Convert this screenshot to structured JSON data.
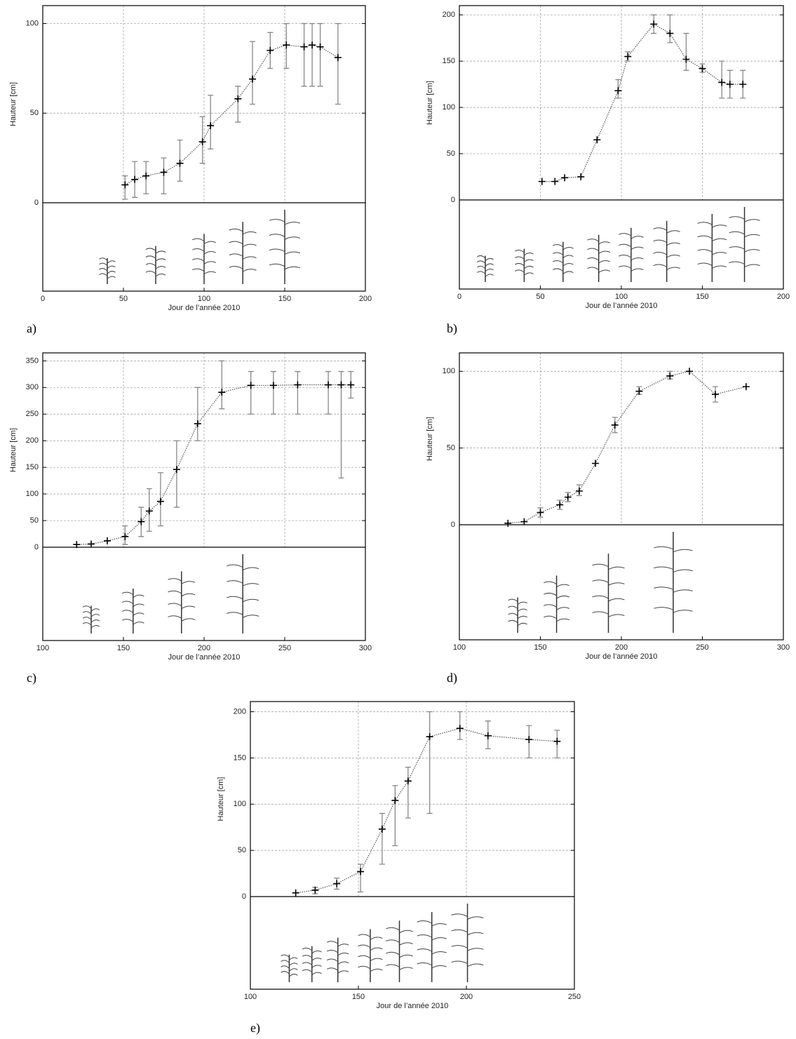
{
  "chart_data": [
    {
      "type": "line",
      "panel_label": "a)",
      "ylabel": "Hauteur  [cm]",
      "xlabel": "Jour de l’année 2010",
      "x": [
        51,
        57,
        64,
        75,
        85,
        99,
        104,
        121,
        130,
        141,
        151,
        162,
        167,
        172,
        183
      ],
      "values": [
        10,
        13,
        15,
        17,
        22,
        34,
        43,
        58,
        69,
        85,
        88,
        87,
        88,
        87,
        81
      ],
      "lower": [
        2,
        3,
        5,
        5,
        12,
        22,
        30,
        45,
        55,
        75,
        75,
        65,
        65,
        65,
        55
      ],
      "upper": [
        15,
        23,
        23,
        25,
        35,
        48,
        60,
        65,
        90,
        95,
        100,
        100,
        100,
        100,
        100
      ],
      "xlim": [
        0,
        200
      ],
      "xticks": [
        0,
        50,
        100,
        150,
        200
      ],
      "ylim": [
        0,
        110
      ],
      "yticks": [
        0,
        50,
        100
      ],
      "grid": true
    },
    {
      "type": "line",
      "panel_label": "b)",
      "ylabel": "Hauteur  [cm]",
      "xlabel": "Jour de l’année 2010",
      "x": [
        51,
        59,
        65,
        75,
        85,
        98,
        104,
        120,
        130,
        140,
        150,
        162,
        167,
        175
      ],
      "values": [
        20,
        20,
        24,
        25,
        65,
        118,
        155,
        190,
        180,
        152,
        142,
        127,
        125,
        125
      ],
      "lower": [
        null,
        null,
        null,
        null,
        null,
        110,
        150,
        180,
        170,
        140,
        138,
        110,
        110,
        110
      ],
      "upper": [
        null,
        null,
        null,
        null,
        null,
        130,
        160,
        200,
        200,
        180,
        147,
        150,
        140,
        140
      ],
      "xlim": [
        0,
        200
      ],
      "xticks": [
        0,
        50,
        100,
        150,
        200
      ],
      "ylim": [
        0,
        210
      ],
      "yticks": [
        0,
        50,
        100,
        150,
        200
      ],
      "grid": true
    },
    {
      "type": "line",
      "panel_label": "c)",
      "ylabel": "Hauteur  [cm]",
      "xlabel": "Jour de l’année 2010",
      "x": [
        121,
        130,
        140,
        151,
        161,
        166,
        173,
        183,
        196,
        211,
        229,
        243,
        258,
        277,
        285,
        291
      ],
      "values": [
        5,
        6,
        12,
        20,
        48,
        68,
        86,
        146,
        232,
        291,
        304,
        304,
        305,
        305,
        305,
        305
      ],
      "lower": [
        null,
        null,
        null,
        5,
        20,
        30,
        40,
        75,
        200,
        260,
        250,
        250,
        250,
        250,
        130,
        280
      ],
      "upper": [
        null,
        null,
        null,
        40,
        75,
        110,
        140,
        200,
        300,
        350,
        330,
        330,
        330,
        330,
        330,
        330
      ],
      "xlim": [
        100,
        300
      ],
      "xticks": [
        100,
        150,
        200,
        250,
        300
      ],
      "ylim": [
        0,
        365
      ],
      "yticks": [
        0,
        50,
        100,
        150,
        200,
        250,
        300,
        350
      ],
      "grid": true
    },
    {
      "type": "line",
      "panel_label": "d)",
      "ylabel": "Hauteur  [cm]",
      "xlabel": "Jour de l’année 2010",
      "x": [
        130,
        140,
        150,
        162,
        167,
        174,
        184,
        196,
        211,
        230,
        242,
        258,
        277
      ],
      "values": [
        1,
        2,
        8,
        13,
        18,
        22,
        40,
        65,
        87,
        97,
        100,
        85,
        90
      ],
      "lower": [
        null,
        null,
        5,
        10,
        15,
        19,
        null,
        60,
        85,
        95,
        null,
        80,
        null
      ],
      "upper": [
        null,
        null,
        11,
        16,
        21,
        26,
        null,
        70,
        90,
        100,
        null,
        90,
        null
      ],
      "xlim": [
        100,
        300
      ],
      "xticks": [
        100,
        150,
        200,
        250,
        300
      ],
      "ylim": [
        0,
        112
      ],
      "yticks": [
        0,
        50,
        100
      ],
      "grid": true
    },
    {
      "type": "line",
      "panel_label": "e)",
      "ylabel": "Hauteur  [cm]",
      "xlabel": "Jour de l’année 2010",
      "x": [
        121,
        130,
        140,
        151,
        161,
        167,
        173,
        183,
        197,
        210,
        229,
        242
      ],
      "values": [
        4,
        7,
        14,
        27,
        73,
        104,
        125,
        173,
        182,
        174,
        170,
        168
      ],
      "lower": [
        null,
        3,
        8,
        5,
        35,
        55,
        85,
        90,
        170,
        160,
        150,
        150
      ],
      "upper": [
        null,
        10,
        20,
        35,
        90,
        120,
        140,
        200,
        200,
        190,
        185,
        180
      ],
      "xlim": [
        100,
        250
      ],
      "xticks": [
        100,
        150,
        200,
        250
      ],
      "ylim": [
        0,
        211
      ],
      "yticks": [
        0,
        50,
        100,
        150,
        200
      ],
      "grid": true
    }
  ]
}
